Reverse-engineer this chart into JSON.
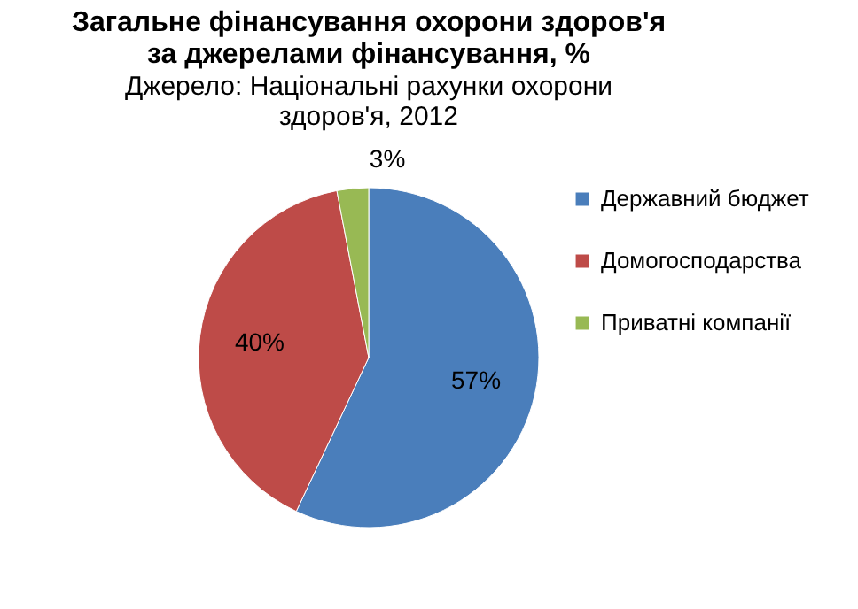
{
  "chart_data": {
    "type": "pie",
    "title": "Загальне фінансування охорони здоров'я за джерелами фінансування, %",
    "subtitle": "Джерело: Національні рахунки охорони здоров'я, 2012",
    "categories": [
      "Державний бюджет",
      "Домогосподарства",
      "Приватні компанії"
    ],
    "values": [
      57,
      40,
      3
    ],
    "colors": [
      "#4a7ebb",
      "#be4b48",
      "#98b954"
    ],
    "value_labels": [
      "57%",
      "40%",
      "3%"
    ],
    "legend": "right"
  }
}
